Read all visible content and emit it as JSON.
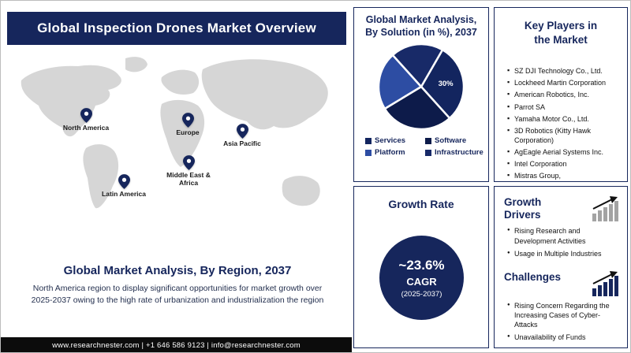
{
  "colors": {
    "navy": "#16265c",
    "map_land": "#d6d6d6",
    "footer_bg": "#0c0c0c"
  },
  "header": {
    "title": "Global Inspection Drones Market Overview"
  },
  "map_section": {
    "pins": [
      {
        "label": "North America"
      },
      {
        "label": "Europe"
      },
      {
        "label": "Asia Pacific"
      },
      {
        "label": "Latin America"
      },
      {
        "label": "Middle East & Africa"
      }
    ],
    "caption": "Global Market Analysis, By Region, 2037",
    "description": "North America region to display significant opportunities for market growth over 2025-2037 owing to the high rate of urbanization and industrialization the region"
  },
  "footer": {
    "text": "www.researchnester.com | +1 646 586 9123 | info@researchnester.com"
  },
  "chart_data": {
    "type": "pie",
    "title": "Global Market Analysis, By Solution (in %), 2037",
    "categories": [
      "Services",
      "Software",
      "Platform",
      "Infrastructure"
    ],
    "values": [
      30,
      28,
      22,
      20
    ],
    "value_labels": [
      "30%",
      "",
      "",
      ""
    ],
    "colors": [
      "#13255f",
      "#0d1b4a",
      "#2d4da3",
      "#182a68"
    ],
    "start_angle": -60,
    "legend_position": "bottom"
  },
  "solution_box": {
    "title": "Global Market Analysis, By Solution (in %), 2037"
  },
  "key_players": {
    "title": "Key Players in the Market",
    "items": [
      "SZ DJI Technology Co., Ltd.",
      "Lockheed Martin Corporation",
      "American Robotics, Inc.",
      "Parrot SA",
      "Yamaha Motor Co., Ltd.",
      "3D Robotics (Kitty Hawk Corporation)",
      "AgEagle Aerial Systems Inc.",
      "Intel Corporation",
      "Mistras Group,"
    ]
  },
  "growth_rate": {
    "title": "Growth Rate",
    "value": "~23.6%",
    "label": "CAGR",
    "period": "(2025-2037)"
  },
  "growth_drivers": {
    "title": "Growth Drivers",
    "items": [
      "Rising Research and Development Activities",
      "Usage in Multiple Industries"
    ]
  },
  "challenges": {
    "title": "Challenges",
    "items": [
      "Rising Concern Regarding the Increasing Cases of Cyber-Attacks",
      "Unavailability of Funds"
    ]
  }
}
